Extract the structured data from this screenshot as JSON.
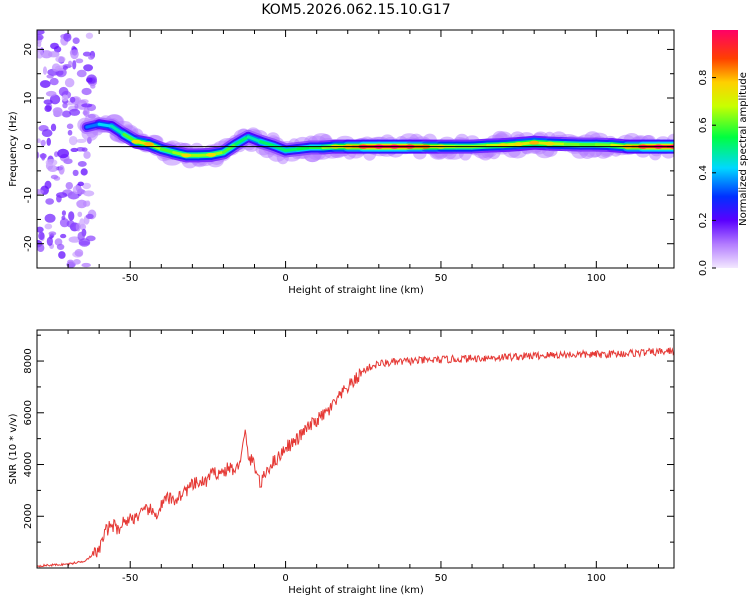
{
  "chart_data": [
    {
      "type": "heatmap",
      "title": "KOM5.2026.062.15.10.G17",
      "xlabel": "Height of straight line (km)",
      "ylabel": "Frequency (Hz)",
      "xlim": [
        -80,
        125
      ],
      "ylim": [
        -25,
        24
      ],
      "xticks": [
        -50,
        0,
        50,
        100
      ],
      "yticks": [
        -20,
        -10,
        0,
        10,
        20
      ],
      "reference_line_y": 0,
      "colorbar": {
        "label": "Normalized spectral amplitude",
        "range": [
          0,
          1
        ],
        "ticks": [
          0.0,
          0.2,
          0.4,
          0.6,
          0.8
        ],
        "colors": [
          "#f2e6ff",
          "#8800ff",
          "#0000ff",
          "#00e5ff",
          "#00ff00",
          "#ffff00",
          "#ff8800",
          "#ff0000",
          "#ff0066"
        ]
      },
      "ridge": [
        {
          "x": -64,
          "y": 4.0,
          "a": 0.3
        },
        {
          "x": -60,
          "y": 4.6,
          "a": 0.4
        },
        {
          "x": -56,
          "y": 4.2,
          "a": 0.45
        },
        {
          "x": -52,
          "y": 2.5,
          "a": 0.5
        },
        {
          "x": -48,
          "y": 1.0,
          "a": 0.7
        },
        {
          "x": -44,
          "y": 0.5,
          "a": 0.75
        },
        {
          "x": -40,
          "y": -0.5,
          "a": 0.6
        },
        {
          "x": -36,
          "y": -1.2,
          "a": 0.6
        },
        {
          "x": -32,
          "y": -1.8,
          "a": 0.7
        },
        {
          "x": -28,
          "y": -1.8,
          "a": 0.6
        },
        {
          "x": -24,
          "y": -1.7,
          "a": 0.7
        },
        {
          "x": -20,
          "y": -1.2,
          "a": 0.6
        },
        {
          "x": -16,
          "y": 0.5,
          "a": 0.6
        },
        {
          "x": -12,
          "y": 2.0,
          "a": 0.45
        },
        {
          "x": -8,
          "y": 1.0,
          "a": 0.5
        },
        {
          "x": -4,
          "y": 0.2,
          "a": 0.55
        },
        {
          "x": 0,
          "y": -0.8,
          "a": 0.5
        },
        {
          "x": 4,
          "y": -0.5,
          "a": 0.55
        },
        {
          "x": 8,
          "y": -0.2,
          "a": 0.55
        },
        {
          "x": 12,
          "y": -0.2,
          "a": 0.6
        },
        {
          "x": 16,
          "y": 0.0,
          "a": 0.7
        },
        {
          "x": 20,
          "y": 0.0,
          "a": 0.75
        },
        {
          "x": 25,
          "y": 0.0,
          "a": 0.9
        },
        {
          "x": 30,
          "y": 0.0,
          "a": 0.95
        },
        {
          "x": 35,
          "y": 0.0,
          "a": 0.95
        },
        {
          "x": 40,
          "y": 0.0,
          "a": 0.9
        },
        {
          "x": 45,
          "y": 0.0,
          "a": 0.8
        },
        {
          "x": 50,
          "y": 0.0,
          "a": 0.7
        },
        {
          "x": 55,
          "y": 0.0,
          "a": 0.65
        },
        {
          "x": 60,
          "y": 0.0,
          "a": 0.65
        },
        {
          "x": 65,
          "y": 0.2,
          "a": 0.65
        },
        {
          "x": 70,
          "y": 0.3,
          "a": 0.7
        },
        {
          "x": 75,
          "y": 0.5,
          "a": 0.7
        },
        {
          "x": 80,
          "y": 0.8,
          "a": 0.75
        },
        {
          "x": 85,
          "y": 0.6,
          "a": 0.7
        },
        {
          "x": 90,
          "y": 0.5,
          "a": 0.65
        },
        {
          "x": 95,
          "y": 0.4,
          "a": 0.6
        },
        {
          "x": 100,
          "y": 0.4,
          "a": 0.6
        },
        {
          "x": 105,
          "y": 0.3,
          "a": 0.65
        },
        {
          "x": 110,
          "y": 0.0,
          "a": 0.75
        },
        {
          "x": 115,
          "y": 0.0,
          "a": 0.9
        },
        {
          "x": 120,
          "y": 0.0,
          "a": 0.95
        },
        {
          "x": 125,
          "y": 0.0,
          "a": 0.95
        }
      ]
    },
    {
      "type": "line",
      "xlabel": "Height of straight line (km)",
      "ylabel": "SNR (10 * v/v)",
      "xlim": [
        -80,
        125
      ],
      "ylim": [
        0,
        9200
      ],
      "xticks": [
        -50,
        0,
        50,
        100
      ],
      "yticks": [
        2000,
        4000,
        6000,
        8000
      ],
      "color": "#e53935",
      "series": [
        {
          "x": [
            -80,
            -70,
            -65,
            -62,
            -60,
            -58,
            -56,
            -54,
            -52,
            -50,
            -48,
            -46,
            -44,
            -42,
            -40,
            -38,
            -36,
            -34,
            -32,
            -30,
            -28,
            -26,
            -24,
            -22,
            -20,
            -18,
            -16,
            -14,
            -13,
            -12,
            -10,
            -8,
            -6,
            -4,
            -2,
            0,
            2,
            4,
            6,
            8,
            10,
            12,
            14,
            16,
            18,
            20,
            22,
            24,
            26,
            28,
            30,
            35,
            40,
            50,
            60,
            70,
            80,
            90,
            100,
            110,
            120,
            125
          ],
          "y": [
            80,
            150,
            260,
            500,
            700,
            1400,
            1700,
            1500,
            1800,
            1900,
            2000,
            2100,
            2300,
            2000,
            2400,
            2700,
            2600,
            2800,
            3000,
            3200,
            3300,
            3300,
            3600,
            3700,
            3700,
            3900,
            3700,
            4500,
            5200,
            4300,
            4000,
            3200,
            3800,
            4100,
            4300,
            4700,
            4800,
            5000,
            5300,
            5500,
            5700,
            5900,
            6100,
            6400,
            6700,
            7000,
            7200,
            7500,
            7700,
            7800,
            7900,
            7950,
            8000,
            8050,
            8100,
            8150,
            8200,
            8250,
            8250,
            8300,
            8350,
            8400
          ]
        }
      ]
    }
  ]
}
